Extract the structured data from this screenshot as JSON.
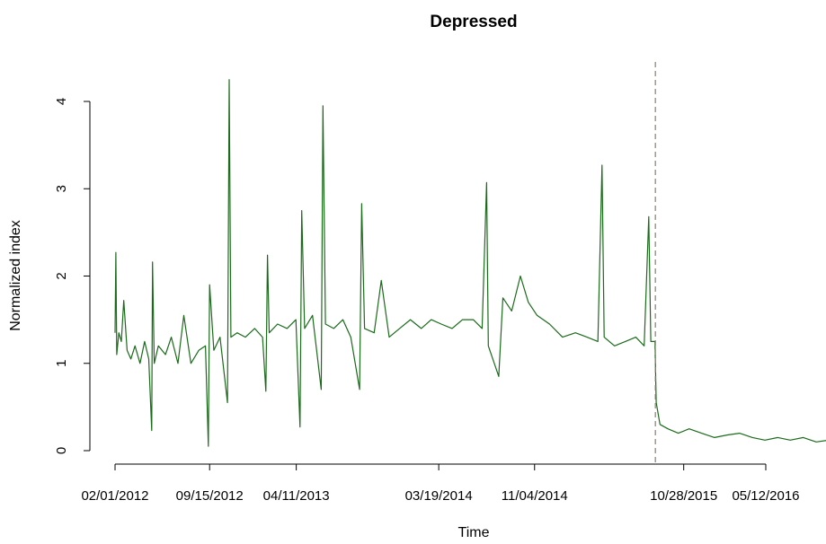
{
  "chart_data": {
    "type": "line",
    "title": "Depressed",
    "xlabel": "Time",
    "ylabel": "Normalized index",
    "xlim": [
      "2012-02-01",
      "2016-12-25"
    ],
    "ylim": [
      0,
      4.2
    ],
    "grid": false,
    "x_ticks": [
      "02/01/2012",
      "09/15/2012",
      "04/11/2013",
      "03/19/2014",
      "11/04/2014",
      "10/28/2015",
      "05/12/2016"
    ],
    "x_tick_dates": [
      "2012-02-01",
      "2012-09-15",
      "2013-04-11",
      "2014-03-19",
      "2014-11-04",
      "2015-10-28",
      "2016-05-12"
    ],
    "y_ticks": [
      0,
      1,
      2,
      3,
      4
    ],
    "vline": {
      "x": "2015-08-21",
      "style": "dashed",
      "color": "#8b7d6b"
    },
    "series": [
      {
        "name": "",
        "color": "#1a6b1a",
        "points": [
          [
            "2012-02-01",
            1.35
          ],
          [
            "2012-02-03",
            2.27
          ],
          [
            "2012-02-05",
            1.1
          ],
          [
            "2012-02-10",
            1.35
          ],
          [
            "2012-02-16",
            1.25
          ],
          [
            "2012-02-22",
            1.72
          ],
          [
            "2012-03-01",
            1.15
          ],
          [
            "2012-03-10",
            1.05
          ],
          [
            "2012-03-20",
            1.2
          ],
          [
            "2012-04-01",
            1.0
          ],
          [
            "2012-04-12",
            1.25
          ],
          [
            "2012-04-22",
            1.05
          ],
          [
            "2012-04-29",
            0.23
          ],
          [
            "2012-05-01",
            2.16
          ],
          [
            "2012-05-05",
            1.0
          ],
          [
            "2012-05-15",
            1.2
          ],
          [
            "2012-06-01",
            1.1
          ],
          [
            "2012-06-15",
            1.3
          ],
          [
            "2012-07-01",
            1.0
          ],
          [
            "2012-07-15",
            1.55
          ],
          [
            "2012-08-01",
            1.0
          ],
          [
            "2012-08-20",
            1.15
          ],
          [
            "2012-09-05",
            1.2
          ],
          [
            "2012-09-12",
            0.05
          ],
          [
            "2012-09-15",
            1.9
          ],
          [
            "2012-09-25",
            1.15
          ],
          [
            "2012-10-10",
            1.3
          ],
          [
            "2012-10-28",
            0.55
          ],
          [
            "2012-11-01",
            4.25
          ],
          [
            "2012-11-05",
            1.3
          ],
          [
            "2012-11-20",
            1.35
          ],
          [
            "2012-12-10",
            1.3
          ],
          [
            "2013-01-01",
            1.4
          ],
          [
            "2013-01-20",
            1.3
          ],
          [
            "2013-01-28",
            0.68
          ],
          [
            "2013-02-01",
            2.24
          ],
          [
            "2013-02-05",
            1.35
          ],
          [
            "2013-02-25",
            1.45
          ],
          [
            "2013-03-20",
            1.4
          ],
          [
            "2013-04-10",
            1.5
          ],
          [
            "2013-04-20",
            0.27
          ],
          [
            "2013-04-24",
            2.75
          ],
          [
            "2013-05-01",
            1.4
          ],
          [
            "2013-05-20",
            1.55
          ],
          [
            "2013-06-10",
            0.7
          ],
          [
            "2013-06-14",
            3.95
          ],
          [
            "2013-06-20",
            1.45
          ],
          [
            "2013-07-10",
            1.4
          ],
          [
            "2013-08-01",
            1.5
          ],
          [
            "2013-08-20",
            1.3
          ],
          [
            "2013-09-10",
            0.7
          ],
          [
            "2013-09-15",
            2.83
          ],
          [
            "2013-09-22",
            1.4
          ],
          [
            "2013-10-15",
            1.35
          ],
          [
            "2013-11-01",
            1.95
          ],
          [
            "2013-11-20",
            1.3
          ],
          [
            "2013-12-15",
            1.4
          ],
          [
            "2014-01-10",
            1.5
          ],
          [
            "2014-02-05",
            1.4
          ],
          [
            "2014-03-01",
            1.5
          ],
          [
            "2014-03-25",
            1.45
          ],
          [
            "2014-04-20",
            1.4
          ],
          [
            "2014-05-15",
            1.5
          ],
          [
            "2014-06-10",
            1.5
          ],
          [
            "2014-07-01",
            1.4
          ],
          [
            "2014-07-12",
            3.07
          ],
          [
            "2014-07-16",
            1.2
          ],
          [
            "2014-08-10",
            0.85
          ],
          [
            "2014-08-20",
            1.75
          ],
          [
            "2014-09-10",
            1.6
          ],
          [
            "2014-10-01",
            2.0
          ],
          [
            "2014-10-20",
            1.7
          ],
          [
            "2014-11-10",
            1.55
          ],
          [
            "2014-12-10",
            1.45
          ],
          [
            "2015-01-10",
            1.3
          ],
          [
            "2015-02-10",
            1.35
          ],
          [
            "2015-03-10",
            1.3
          ],
          [
            "2015-04-05",
            1.25
          ],
          [
            "2015-04-15",
            3.27
          ],
          [
            "2015-04-20",
            1.3
          ],
          [
            "2015-05-15",
            1.2
          ],
          [
            "2015-06-10",
            1.25
          ],
          [
            "2015-07-05",
            1.3
          ],
          [
            "2015-07-25",
            1.2
          ],
          [
            "2015-08-05",
            2.68
          ],
          [
            "2015-08-10",
            1.25
          ],
          [
            "2015-08-20",
            1.25
          ],
          [
            "2015-08-23",
            0.55
          ],
          [
            "2015-09-01",
            0.3
          ],
          [
            "2015-09-20",
            0.25
          ],
          [
            "2015-10-15",
            0.2
          ],
          [
            "2015-11-10",
            0.25
          ],
          [
            "2015-12-10",
            0.2
          ],
          [
            "2016-01-10",
            0.15
          ],
          [
            "2016-02-10",
            0.18
          ],
          [
            "2016-03-10",
            0.2
          ],
          [
            "2016-04-10",
            0.15
          ],
          [
            "2016-05-10",
            0.12
          ],
          [
            "2016-06-10",
            0.15
          ],
          [
            "2016-07-10",
            0.12
          ],
          [
            "2016-08-10",
            0.15
          ],
          [
            "2016-09-10",
            0.1
          ],
          [
            "2016-10-10",
            0.12
          ],
          [
            "2016-11-10",
            0.1
          ],
          [
            "2016-12-25",
            0.08
          ]
        ]
      }
    ]
  }
}
